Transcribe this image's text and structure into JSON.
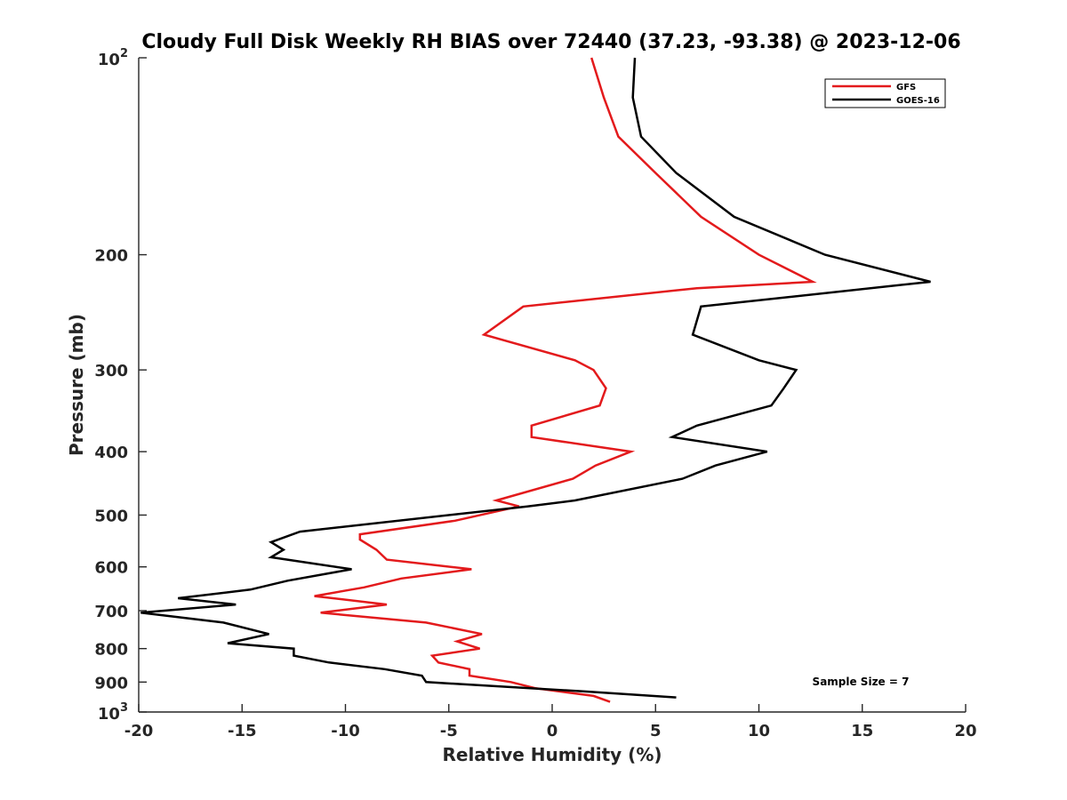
{
  "chart_data": {
    "type": "line",
    "title": "Cloudy Full Disk Weekly RH BIAS over 72440 (37.23, -93.38) @ 2023-12-06",
    "xlabel": "Relative Humidity (%)",
    "ylabel": "Pressure (mb)",
    "xlim": [
      -20,
      20
    ],
    "ylim": [
      1000,
      100
    ],
    "yscale": "log",
    "y_reversed": true,
    "x_ticks": [
      "-20",
      "-15",
      "-10",
      "-5",
      "0",
      "5",
      "10",
      "15",
      "20"
    ],
    "y_ticks": [
      {
        "value": 100,
        "base": "10",
        "exp": "2"
      },
      {
        "value": 200,
        "label": "200"
      },
      {
        "value": 300,
        "label": "300"
      },
      {
        "value": 400,
        "label": "400"
      },
      {
        "value": 500,
        "label": "500"
      },
      {
        "value": 600,
        "label": "600"
      },
      {
        "value": 700,
        "label": "700"
      },
      {
        "value": 800,
        "label": "800"
      },
      {
        "value": 900,
        "label": "900"
      },
      {
        "value": 1000,
        "base": "10",
        "exp": "3"
      }
    ],
    "legend_position": "top-right",
    "grid": false,
    "annotation": "Sample Size = 7",
    "series": [
      {
        "name": "GFS",
        "color": "#e31a1c",
        "points": [
          [
            1.9,
            100
          ],
          [
            2.5,
            115
          ],
          [
            3.2,
            132
          ],
          [
            5,
            150
          ],
          [
            7.2,
            175
          ],
          [
            10,
            200
          ],
          [
            12.6,
            220
          ],
          [
            7,
            225
          ],
          [
            -1.4,
            240
          ],
          [
            -3.3,
            265
          ],
          [
            1.1,
            290
          ],
          [
            2,
            300
          ],
          [
            2.6,
            320
          ],
          [
            2.3,
            340
          ],
          [
            -1,
            365
          ],
          [
            -1,
            380
          ],
          [
            3.8,
            400
          ],
          [
            2.1,
            420
          ],
          [
            1,
            440
          ],
          [
            -2.7,
            475
          ],
          [
            -1.6,
            485
          ],
          [
            -4.7,
            510
          ],
          [
            -9.3,
            535
          ],
          [
            -9.3,
            545
          ],
          [
            -8.5,
            565
          ],
          [
            -8,
            585
          ],
          [
            -3.9,
            605
          ],
          [
            -7.3,
            625
          ],
          [
            -9.1,
            645
          ],
          [
            -11.5,
            665
          ],
          [
            -8,
            685
          ],
          [
            -11.2,
            705
          ],
          [
            -6.1,
            730
          ],
          [
            -3.4,
            760
          ],
          [
            -4.6,
            780
          ],
          [
            -3.5,
            800
          ],
          [
            -5.8,
            820
          ],
          [
            -5.5,
            840
          ],
          [
            -4,
            860
          ],
          [
            -4,
            880
          ],
          [
            -2,
            900
          ],
          [
            -0.8,
            920
          ],
          [
            2,
            945
          ],
          [
            2.8,
            965
          ]
        ]
      },
      {
        "name": "GOES-16",
        "color": "#000000",
        "points": [
          [
            4,
            100
          ],
          [
            3.9,
            115
          ],
          [
            4.3,
            132
          ],
          [
            6,
            150
          ],
          [
            8.8,
            175
          ],
          [
            13.2,
            200
          ],
          [
            18.3,
            220
          ],
          [
            7.2,
            240
          ],
          [
            6.8,
            265
          ],
          [
            10,
            290
          ],
          [
            11.8,
            300
          ],
          [
            11.2,
            320
          ],
          [
            10.6,
            340
          ],
          [
            7,
            365
          ],
          [
            5.8,
            380
          ],
          [
            10.4,
            400
          ],
          [
            7.9,
            420
          ],
          [
            6.3,
            440
          ],
          [
            1.1,
            475
          ],
          [
            -1.2,
            485
          ],
          [
            -12.2,
            530
          ],
          [
            -13.6,
            550
          ],
          [
            -13,
            565
          ],
          [
            -13.6,
            580
          ],
          [
            -9.7,
            605
          ],
          [
            -12.8,
            630
          ],
          [
            -14.6,
            650
          ],
          [
            -18.1,
            670
          ],
          [
            -15.3,
            685
          ],
          [
            -19.9,
            705
          ],
          [
            -15.9,
            730
          ],
          [
            -13.7,
            760
          ],
          [
            -15.7,
            785
          ],
          [
            -12.5,
            800
          ],
          [
            -12.5,
            820
          ],
          [
            -10.8,
            840
          ],
          [
            -8.1,
            860
          ],
          [
            -6.3,
            880
          ],
          [
            -6.1,
            900
          ],
          [
            1.5,
            930
          ],
          [
            6,
            950
          ]
        ]
      }
    ]
  }
}
